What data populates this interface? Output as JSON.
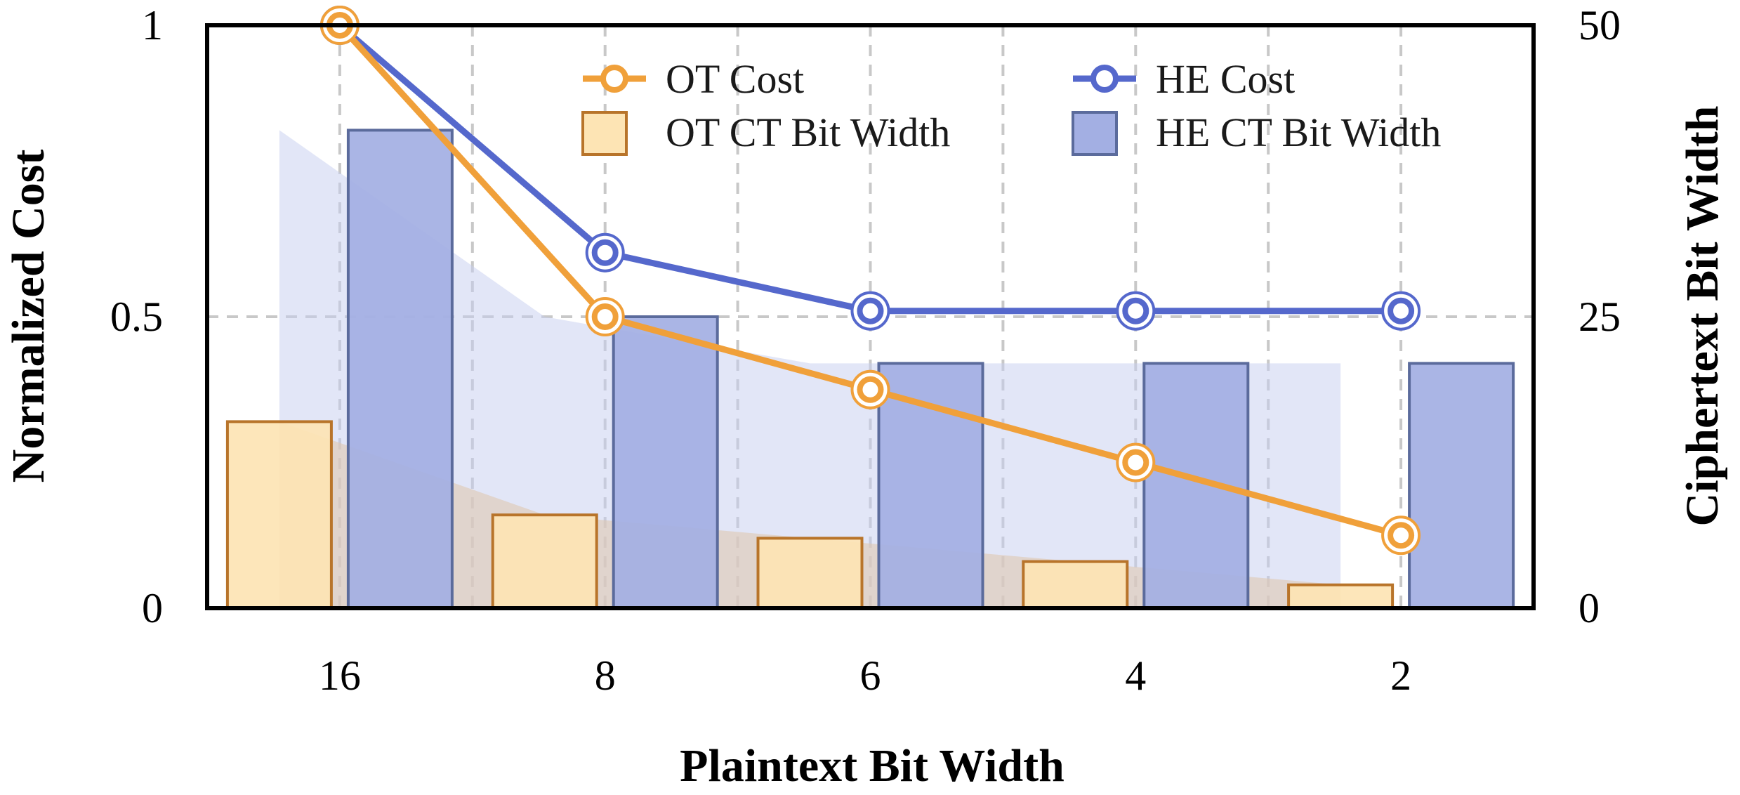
{
  "chart_data": {
    "type": "bar+line",
    "title": "",
    "xlabel": "Plaintext Bit Width",
    "ylabel": "Normalized Cost",
    "y2label": "Ciphertext Bit Width",
    "categories": [
      "16",
      "8",
      "6",
      "4",
      "2"
    ],
    "ylim": [
      0,
      1
    ],
    "y2lim": [
      0,
      50
    ],
    "yticks": [
      "0",
      "0.5",
      "1"
    ],
    "y2ticks": [
      "0",
      "25",
      "50"
    ],
    "grid": true,
    "legend_position": "top",
    "bar_series": [
      {
        "name": "OT CT Bit Width",
        "axis": "right",
        "values": [
          16,
          8,
          6,
          4,
          2
        ],
        "fill": "#fde4b4",
        "stroke": "#b8742a"
      },
      {
        "name": "HE CT Bit Width",
        "axis": "right",
        "values": [
          41,
          25,
          21,
          21,
          21
        ],
        "fill": "#a3afe3",
        "stroke": "#5b6b9c"
      }
    ],
    "line_series": [
      {
        "name": "OT Cost",
        "axis": "left",
        "values": [
          1.0,
          0.5,
          0.375,
          0.25,
          0.125
        ],
        "color": "#f0a03a"
      },
      {
        "name": "HE Cost",
        "axis": "left",
        "values": [
          1.0,
          0.61,
          0.51,
          0.51,
          0.51
        ],
        "color": "#5568cc"
      }
    ]
  }
}
